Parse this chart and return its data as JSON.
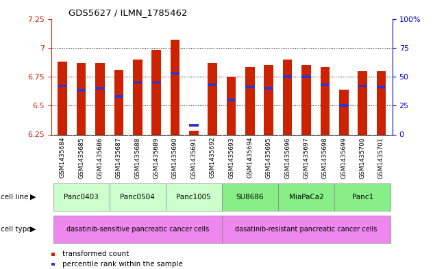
{
  "title": "GDS5627 / ILMN_1785462",
  "samples": [
    "GSM1435684",
    "GSM1435685",
    "GSM1435686",
    "GSM1435687",
    "GSM1435688",
    "GSM1435689",
    "GSM1435690",
    "GSM1435691",
    "GSM1435692",
    "GSM1435693",
    "GSM1435694",
    "GSM1435695",
    "GSM1435696",
    "GSM1435697",
    "GSM1435698",
    "GSM1435699",
    "GSM1435700",
    "GSM1435701"
  ],
  "bar_values": [
    6.88,
    6.87,
    6.87,
    6.81,
    6.9,
    6.98,
    7.07,
    6.28,
    6.87,
    6.75,
    6.83,
    6.85,
    6.9,
    6.85,
    6.83,
    6.64,
    6.8,
    6.8
  ],
  "blue_marker_values": [
    6.67,
    6.63,
    6.65,
    6.58,
    6.7,
    6.7,
    6.78,
    6.33,
    6.68,
    6.55,
    6.66,
    6.65,
    6.75,
    6.75,
    6.68,
    6.5,
    6.67,
    6.66
  ],
  "ylim": [
    6.25,
    7.25
  ],
  "yticks": [
    6.25,
    6.5,
    6.75,
    7.0,
    7.25
  ],
  "ytick_labels": [
    "6.25",
    "6.5",
    "6.75",
    "7",
    "7.25"
  ],
  "right_yticks": [
    0,
    25,
    50,
    75,
    100
  ],
  "right_ytick_labels": [
    "0",
    "25",
    "50",
    "75",
    "100%"
  ],
  "grid_values": [
    6.5,
    6.75,
    7.0
  ],
  "bar_color": "#cc2200",
  "blue_marker_color": "#3333cc",
  "cell_lines": [
    {
      "label": "Panc0403",
      "start": 0,
      "end": 2
    },
    {
      "label": "Panc0504",
      "start": 3,
      "end": 5
    },
    {
      "label": "Panc1005",
      "start": 6,
      "end": 8
    },
    {
      "label": "SU8686",
      "start": 9,
      "end": 11
    },
    {
      "label": "MiaPaCa2",
      "start": 12,
      "end": 14
    },
    {
      "label": "Panc1",
      "start": 15,
      "end": 17
    }
  ],
  "cell_line_colors": [
    "#ccffcc",
    "#ccffcc",
    "#ccffcc",
    "#88ee88",
    "#88ee88",
    "#88ee88"
  ],
  "cell_types": [
    {
      "label": "dasatinib-sensitive pancreatic cancer cells",
      "start": 0,
      "end": 8
    },
    {
      "label": "dasatinib-resistant pancreatic cancer cells",
      "start": 9,
      "end": 17
    }
  ],
  "cell_type_color": "#ee88ee",
  "bg_color": "#ffffff",
  "plot_bg_color": "#ffffff",
  "left_axis_color": "#cc2200",
  "right_axis_color": "#0000cc",
  "xtick_bg": "#d8d8d8",
  "bar_width": 0.5
}
